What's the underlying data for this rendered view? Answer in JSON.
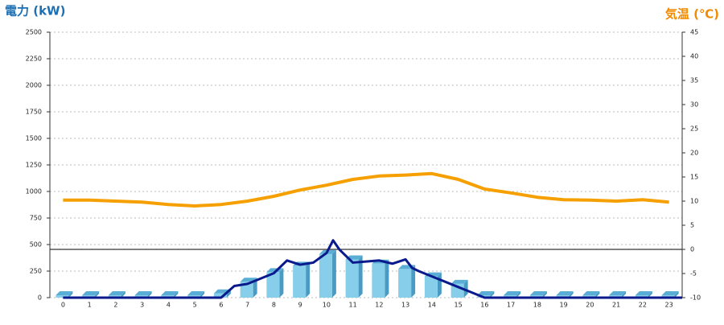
{
  "chart_data": {
    "type": "combo",
    "y_label": "電力 (kW)",
    "y2_label": "気温 (℃)",
    "categories": [
      "0",
      "1",
      "2",
      "3",
      "4",
      "5",
      "6",
      "7",
      "8",
      "9",
      "10",
      "11",
      "12",
      "13",
      "14",
      "15",
      "16",
      "17",
      "18",
      "19",
      "20",
      "21",
      "22",
      "23"
    ],
    "ylim": [
      0,
      2500
    ],
    "yticks": [
      0,
      250,
      500,
      750,
      1000,
      1250,
      1500,
      1750,
      2000,
      2250,
      2500
    ],
    "y2lim": [
      -10,
      45
    ],
    "y2ticks": [
      -10,
      -5,
      0,
      5,
      10,
      15,
      20,
      25,
      30,
      35,
      40,
      45
    ],
    "grid": true,
    "y2_zero_line": true,
    "series": [
      {
        "type": "bar",
        "color": "#87ceeb",
        "values": [
          0,
          0,
          0,
          0,
          0,
          0,
          40,
          150,
          240,
          300,
          410,
          360,
          320,
          270,
          200,
          130,
          0,
          0,
          0,
          0,
          0,
          0,
          0,
          0
        ]
      },
      {
        "type": "line",
        "color": "#0a1a8c",
        "x": [
          0,
          1,
          2,
          3,
          4,
          5,
          6,
          6.5,
          7,
          7.5,
          8,
          8.5,
          9,
          9.5,
          10,
          10.25,
          10.5,
          11,
          11.5,
          12,
          12.5,
          13,
          13.25,
          13.5,
          14,
          14.5,
          15,
          15.5,
          16,
          17,
          18,
          19,
          20,
          21,
          22,
          23.5
        ],
        "values": [
          0,
          0,
          0,
          0,
          0,
          0,
          0,
          110,
          130,
          180,
          230,
          350,
          310,
          330,
          420,
          540,
          450,
          330,
          340,
          350,
          320,
          360,
          280,
          250,
          200,
          150,
          100,
          50,
          0,
          0,
          0,
          0,
          0,
          0,
          0,
          0
        ]
      },
      {
        "type": "line",
        "axis": "y2",
        "color": "#f5a000",
        "values": [
          10.2,
          10.2,
          10,
          9.8,
          9.3,
          9,
          9.3,
          10,
          11,
          12.3,
          13.3,
          14.5,
          15.2,
          15.4,
          15.7,
          14.5,
          12.5,
          11.7,
          10.8,
          10.3,
          10.2,
          10,
          10.3,
          9.8
        ]
      }
    ]
  }
}
